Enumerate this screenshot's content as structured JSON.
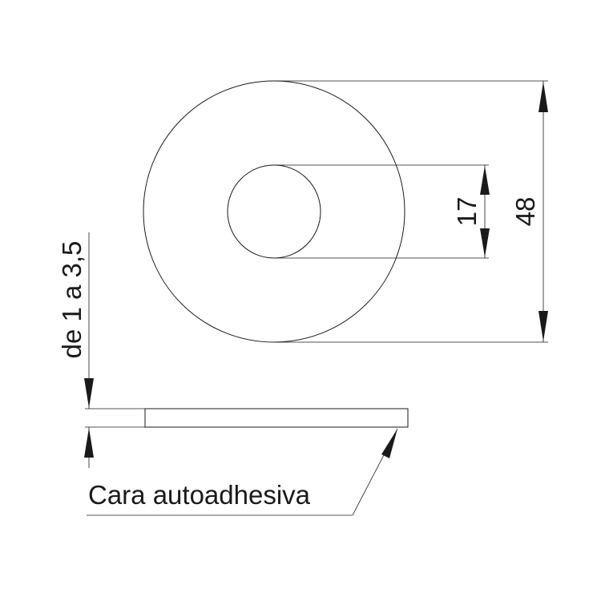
{
  "dimensions": {
    "outer_diameter": "48",
    "inner_diameter": "17",
    "thickness": "de 1 a 3,5"
  },
  "labels": {
    "adhesive_face": "Cara autoadhesiva"
  },
  "colors": {
    "line": "#1a1a1a",
    "background": "#ffffff"
  }
}
